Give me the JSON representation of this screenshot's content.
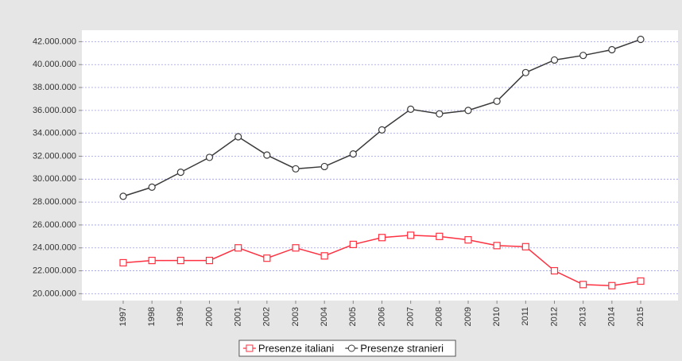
{
  "chart_data": {
    "type": "line",
    "categories": [
      "1997",
      "1998",
      "1999",
      "2000",
      "2001",
      "2002",
      "2003",
      "2004",
      "2005",
      "2006",
      "2007",
      "2008",
      "2009",
      "2010",
      "2011",
      "2012",
      "2013",
      "2014",
      "2015"
    ],
    "series": [
      {
        "name": "Presenze italiani",
        "color": "#ff3040",
        "marker": "square",
        "values": [
          22700000,
          22900000,
          22900000,
          22900000,
          24000000,
          23100000,
          24000000,
          23300000,
          24300000,
          24900000,
          25100000,
          25000000,
          24700000,
          24200000,
          24100000,
          22000000,
          20800000,
          20700000,
          21100000
        ]
      },
      {
        "name": "Presenze stranieri",
        "color": "#3a3a3a",
        "marker": "circle",
        "values": [
          28500000,
          29300000,
          30600000,
          31900000,
          33700000,
          32100000,
          30900000,
          31100000,
          32200000,
          34300000,
          36100000,
          35700000,
          36000000,
          36800000,
          39300000,
          40400000,
          40800000,
          41300000,
          42200000
        ]
      }
    ],
    "ylim": [
      19400000,
      43000000
    ],
    "yticks": [
      {
        "value": 20000000,
        "label": "20.000.000"
      },
      {
        "value": 22000000,
        "label": "22.000.000"
      },
      {
        "value": 24000000,
        "label": "24.000.000"
      },
      {
        "value": 26000000,
        "label": "26.000.000"
      },
      {
        "value": 28000000,
        "label": "28.000.000"
      },
      {
        "value": 30000000,
        "label": "30.000.000"
      },
      {
        "value": 32000000,
        "label": "32.000.000"
      },
      {
        "value": 34000000,
        "label": "34.000.000"
      },
      {
        "value": 36000000,
        "label": "36.000.000"
      },
      {
        "value": 38000000,
        "label": "38.000.000"
      },
      {
        "value": 40000000,
        "label": "40.000.000"
      },
      {
        "value": 42000000,
        "label": "42.000.000"
      }
    ],
    "grid": true,
    "legend": "bottom"
  }
}
